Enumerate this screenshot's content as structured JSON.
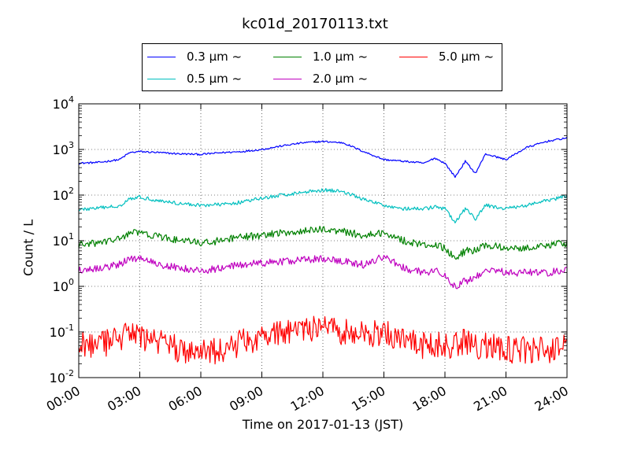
{
  "chart_data": {
    "type": "line",
    "title": "kc01d_20170113.txt",
    "xlabel": "Time on 2017-01-13 (JST)",
    "ylabel": "Count / L",
    "x_ticks": [
      "00:00",
      "03:00",
      "06:00",
      "09:00",
      "12:00",
      "15:00",
      "18:00",
      "21:00",
      "24:00"
    ],
    "x_range_hours": [
      0,
      24
    ],
    "yscale": "log",
    "ylim": [
      0.01,
      10000
    ],
    "y_ticks": [
      {
        "base": "10",
        "exp": "-2"
      },
      {
        "base": "10",
        "exp": "-1"
      },
      {
        "base": "10",
        "exp": "0"
      },
      {
        "base": "10",
        "exp": "1"
      },
      {
        "base": "10",
        "exp": "2"
      },
      {
        "base": "10",
        "exp": "3"
      },
      {
        "base": "10",
        "exp": "4"
      }
    ],
    "grid": true,
    "legend_location": "top-center",
    "x_hours": [
      0,
      1,
      2,
      2.5,
      3,
      4,
      5,
      6,
      7,
      8,
      9,
      10,
      11,
      12,
      13,
      14,
      15,
      16,
      17,
      17.5,
      18,
      18.5,
      19,
      19.5,
      20,
      21,
      22,
      23,
      24
    ],
    "series": [
      {
        "name": "0.3 µm ~",
        "color": "#0000ff",
        "noise": 0.02,
        "values": [
          500,
          520,
          600,
          850,
          900,
          850,
          800,
          780,
          850,
          900,
          1000,
          1200,
          1400,
          1500,
          1400,
          900,
          600,
          550,
          500,
          650,
          500,
          250,
          550,
          300,
          800,
          600,
          1100,
          1500,
          1800
        ]
      },
      {
        "name": "0.5 µm ~",
        "color": "#00bfbf",
        "noise": 0.04,
        "values": [
          48,
          52,
          58,
          85,
          90,
          75,
          65,
          60,
          62,
          70,
          85,
          100,
          115,
          130,
          120,
          80,
          60,
          50,
          50,
          55,
          50,
          25,
          50,
          30,
          60,
          50,
          60,
          75,
          95
        ]
      },
      {
        "name": "1.0 µm ~",
        "color": "#008000",
        "noise": 0.08,
        "values": [
          8,
          9,
          11,
          15,
          15,
          12,
          10,
          9,
          10,
          12,
          13,
          15,
          16,
          18,
          16,
          13,
          15,
          10,
          8,
          8,
          7,
          4,
          6,
          6,
          8,
          7,
          7,
          8,
          9
        ]
      },
      {
        "name": "2.0 µm ~",
        "color": "#bf00bf",
        "noise": 0.08,
        "values": [
          2.3,
          2.5,
          3,
          4,
          4.2,
          3,
          2.5,
          2.2,
          2.5,
          3,
          3.2,
          3.5,
          3.8,
          4,
          3.5,
          3,
          4.5,
          2.5,
          2,
          2.2,
          1.8,
          1,
          1.3,
          1.5,
          2.5,
          2,
          2,
          2,
          2.3
        ]
      },
      {
        "name": "5.0 µm ~",
        "color": "#ff0000",
        "noise": 0.3,
        "values": [
          0.06,
          0.05,
          0.07,
          0.09,
          0.08,
          0.06,
          0.04,
          0.035,
          0.04,
          0.06,
          0.08,
          0.1,
          0.12,
          0.12,
          0.1,
          0.09,
          0.1,
          0.06,
          0.05,
          0.05,
          0.05,
          0.05,
          0.06,
          0.05,
          0.05,
          0.04,
          0.04,
          0.04,
          0.05
        ]
      }
    ]
  }
}
